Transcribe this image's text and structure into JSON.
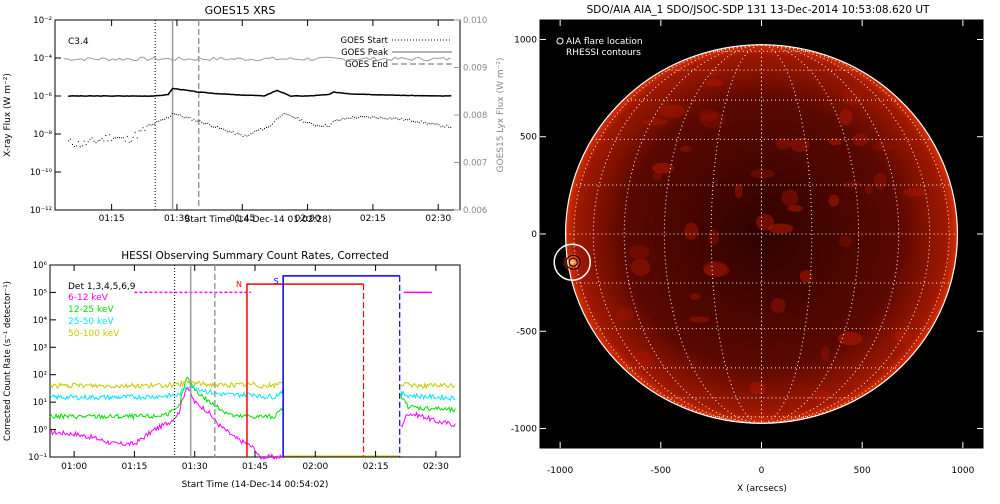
{
  "colors": {
    "goes_long": "#000000",
    "goes_short": "#000000",
    "goes_lya": "#9a9a9a",
    "marker_gray": "#9a9a9a",
    "det_label": "#000000",
    "band_6_12": "#ff00ff",
    "band_12_25": "#00e000",
    "band_25_50": "#00e5ff",
    "band_50_100": "#c8c800",
    "night": "#ff0000",
    "saa": "#0000ff",
    "sun_disk": "#6a0a00",
    "sun_grid": "#ffffff",
    "sun_limb": "#ffffff",
    "sun_bg": "#000000"
  },
  "chart_data": [
    {
      "type": "line",
      "title": "GOES15 XRS",
      "xlabel": "Start Time (14-Dec-14 01:02:28)",
      "ylabel": "X-ray Flux (W m⁻²)",
      "ylabel_right": "GOES15 Lyx Flux (W m⁻²)",
      "class_label": "C3.4",
      "x_ticks": [
        "01:15",
        "01:30",
        "01:45",
        "02:00",
        "02:15",
        "02:30"
      ],
      "y_ticks": [
        "10⁻²",
        "10⁻⁴",
        "10⁻⁶",
        "10⁻⁸",
        "10⁻¹⁰",
        "10⁻¹²"
      ],
      "y_ticks_right": [
        "0.010",
        "0.009",
        "0.008",
        "0.007",
        "0.006"
      ],
      "legend": [
        "GOES Start",
        "GOES Peak",
        "GOES End"
      ],
      "markers": {
        "start": "01:25",
        "peak": "01:29",
        "end": "01:35"
      },
      "series": [
        {
          "x": [
            "01:05",
            "01:10",
            "01:15",
            "01:20",
            "01:25",
            "01:28",
            "01:29",
            "01:31",
            "01:35",
            "01:40",
            "01:45",
            "01:47",
            "01:50",
            "01:53",
            "01:56",
            "02:00",
            "02:05",
            "02:06",
            "02:10",
            "02:20",
            "02:30",
            "02:33"
          ],
          "values": [
            1e-06,
            1e-06,
            1e-06,
            1e-06,
            1e-06,
            1.2e-06,
            2.5e-06,
            2.2e-06,
            1.6e-06,
            1.3e-06,
            1.1e-06,
            1.1e-06,
            1e-06,
            2e-06,
            1e-06,
            1e-06,
            1.2e-06,
            1.6e-06,
            1.3e-06,
            1.1e-06,
            1e-06,
            1e-06
          ]
        },
        {
          "x": [
            "01:05",
            "01:08",
            "01:12",
            "01:15",
            "01:18",
            "01:20",
            "01:25",
            "01:28",
            "01:29",
            "01:31",
            "01:35",
            "01:40",
            "01:44",
            "01:46",
            "01:48",
            "01:51",
            "01:54",
            "01:57",
            "02:00",
            "02:02",
            "02:05",
            "02:06",
            "02:10",
            "02:15",
            "02:20",
            "02:25",
            "02:30",
            "02:33"
          ],
          "values": [
            4e-09,
            3e-09,
            5e-09,
            8e-09,
            5e-09,
            8e-09,
            4e-08,
            8e-08,
            1.4e-07,
            9e-08,
            5e-08,
            2e-08,
            1e-08,
            8e-09,
            1.5e-08,
            2.5e-08,
            1.2e-07,
            8e-08,
            4e-08,
            3e-08,
            3e-08,
            5e-08,
            8e-08,
            8e-08,
            7e-08,
            5e-08,
            3e-08,
            2.5e-08
          ]
        },
        {
          "x": [
            "01:05",
            "02:33"
          ],
          "values": [
            0.00918,
            0.00918
          ]
        }
      ]
    },
    {
      "type": "line",
      "title": "HESSI Observing Summary Count Rates, Corrected",
      "xlabel": "Start Time (14-Dec-14 00:54:02)",
      "ylabel": "Corrected Count Rate (s⁻¹ detector⁻¹)",
      "x_ticks": [
        "01:00",
        "01:15",
        "01:30",
        "01:45",
        "02:00",
        "02:15",
        "02:30"
      ],
      "y_ticks": [
        "10⁶",
        "10⁵",
        "10⁴",
        "10³",
        "10²",
        "10¹",
        "10⁰",
        "10⁻¹"
      ],
      "legend": [
        "Det 1,3,4,5,6,9",
        "6-12 keV",
        "12-25 keV",
        "25-50 keV",
        "50-100 keV"
      ],
      "flags": {
        "night_label": "N",
        "saa_label": "S"
      },
      "series": [
        {
          "name": "6-12 keV",
          "x": [
            "00:54",
            "01:00",
            "01:05",
            "01:10",
            "01:15",
            "01:20",
            "01:24",
            "01:26",
            "01:28",
            "01:30",
            "01:33",
            "01:36",
            "01:40",
            "01:43",
            "01:45",
            "01:46",
            "01:50",
            "01:52",
            "02:21",
            "02:23",
            "02:27",
            "02:30",
            "02:35"
          ],
          "values": [
            0.8,
            0.7,
            0.5,
            0.3,
            0.3,
            1.0,
            2.0,
            4,
            40,
            10,
            5,
            1.5,
            0.5,
            0.3,
            0.2,
            0.1,
            0.1,
            0.1,
            1.0,
            4,
            3,
            2,
            1.5
          ]
        },
        {
          "name": "12-25 keV",
          "x": [
            "00:54",
            "01:00",
            "01:05",
            "01:10",
            "01:15",
            "01:20",
            "01:24",
            "01:26",
            "01:28",
            "01:30",
            "01:33",
            "01:36",
            "01:40",
            "01:43",
            "01:45",
            "01:46",
            "01:50",
            "01:52",
            "02:21",
            "02:23",
            "02:27",
            "02:30",
            "02:35"
          ],
          "values": [
            3,
            3,
            3,
            3,
            3,
            3,
            4,
            6,
            80,
            30,
            12,
            6,
            3,
            3,
            3,
            3,
            3,
            6,
            20,
            7,
            6,
            6,
            5
          ]
        },
        {
          "name": "25-50 keV",
          "x": [
            "00:54",
            "01:00",
            "01:10",
            "01:20",
            "01:26",
            "01:28",
            "01:30",
            "01:33",
            "01:36",
            "01:40",
            "01:45",
            "01:46",
            "01:50",
            "01:52",
            "02:21",
            "02:23",
            "02:27",
            "02:35"
          ],
          "values": [
            15,
            15,
            15,
            16,
            18,
            40,
            35,
            25,
            20,
            18,
            20,
            16,
            16,
            28,
            22,
            18,
            16,
            14
          ]
        },
        {
          "name": "50-100 keV",
          "x": [
            "00:54",
            "01:00",
            "01:10",
            "01:20",
            "01:26",
            "01:28",
            "01:30",
            "01:33",
            "01:36",
            "01:40",
            "01:45",
            "01:46",
            "01:50",
            "01:52",
            "02:21",
            "02:23",
            "02:27",
            "02:35"
          ],
          "values": [
            40,
            40,
            40,
            40,
            42,
            55,
            50,
            45,
            42,
            42,
            45,
            40,
            40,
            60,
            45,
            42,
            40,
            40
          ]
        }
      ]
    },
    {
      "type": "scatter",
      "title": "SDO/AIA AIA_1 SDO/JSOC-SDP 131 13-Dec-2014 10:53:08.620 UT",
      "xlabel": "X (arcsecs)",
      "x_ticks": [
        "-1000",
        "-500",
        "0",
        "500",
        "1000"
      ],
      "y_ticks": [
        "1000",
        "500",
        "0",
        "-500",
        "-1000"
      ],
      "xlim": [
        -1100,
        1100
      ],
      "ylim": [
        -1100,
        1100
      ],
      "legend": [
        "AIA flare location",
        "RHESSI contours"
      ],
      "solar_radius": 973,
      "flare_location": {
        "x": -940,
        "y": -145
      }
    }
  ]
}
